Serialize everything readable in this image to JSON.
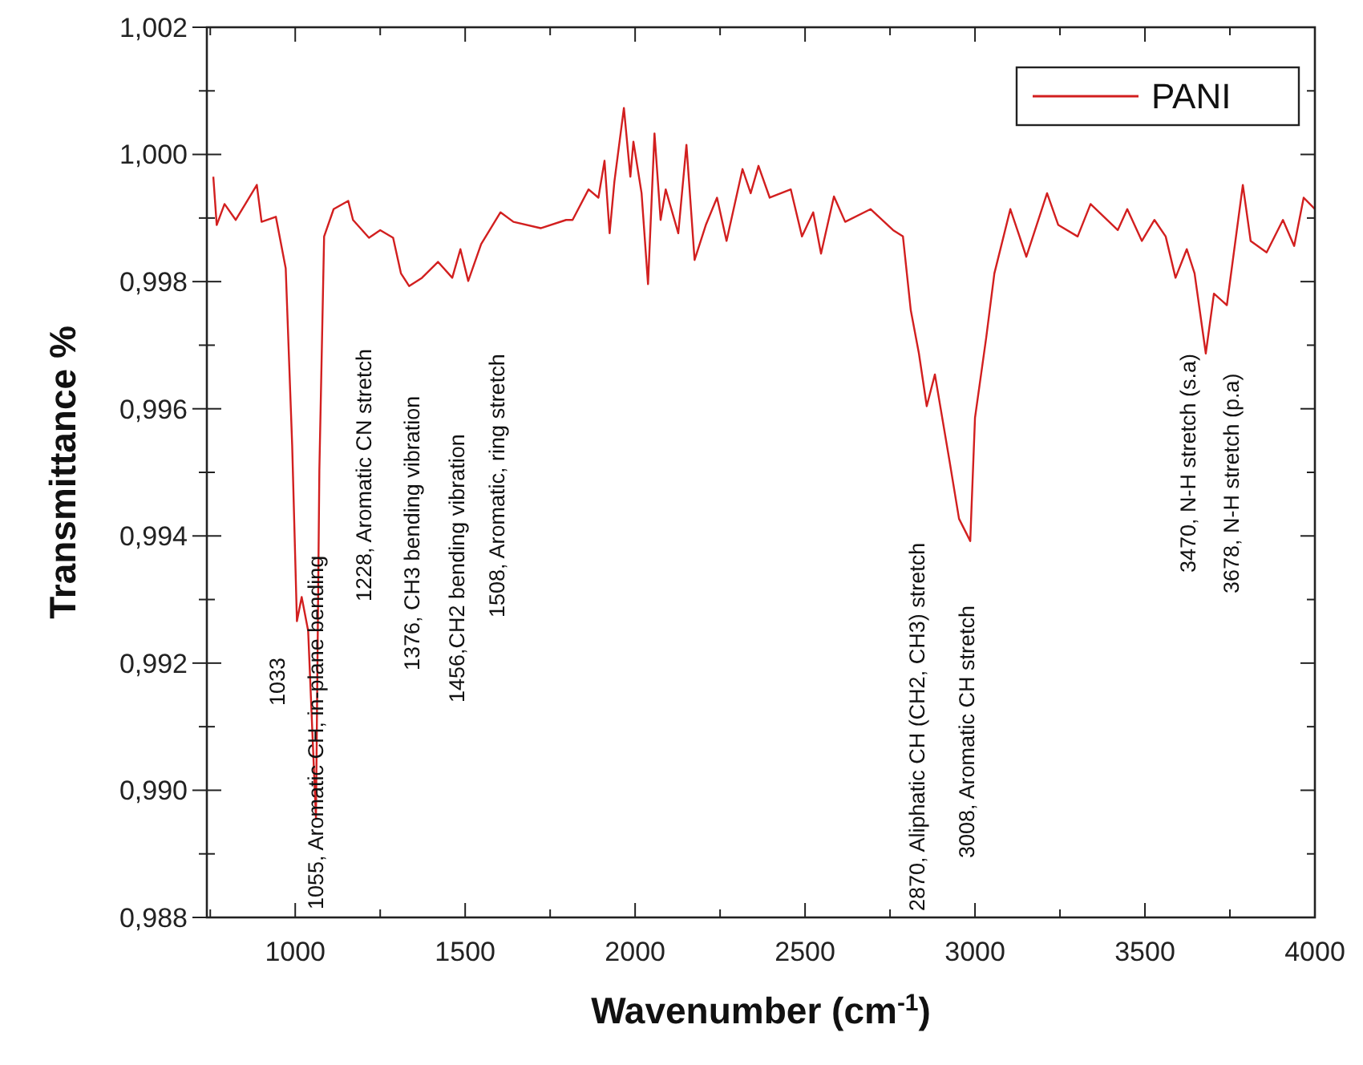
{
  "chart_data": {
    "type": "line",
    "xlabel": "Wavenumber (cm$^{-1}$)",
    "ylabel": "Transmittance %",
    "xlim": [
      740,
      4000
    ],
    "xticks": [
      {
        "value": 750,
        "label": null
      },
      1000,
      {
        "value": 1250,
        "label": null
      },
      1500,
      {
        "value": 1750,
        "label": null
      },
      2000,
      {
        "value": 2250,
        "label": null
      },
      2500,
      {
        "value": 2750,
        "label": null
      },
      3000,
      {
        "value": 3250,
        "label": null
      },
      3500,
      {
        "value": 3750,
        "label": null
      },
      4000
    ],
    "ylim": [
      0.988,
      1.002
    ],
    "yticks": [
      {
        "value": 0.988,
        "label": "0,988"
      },
      {
        "value": 0.989,
        "label": null
      },
      {
        "value": 0.99,
        "label": "0,990"
      },
      {
        "value": 0.991,
        "label": null
      },
      {
        "value": 0.992,
        "label": "0,992"
      },
      {
        "value": 0.993,
        "label": null
      },
      {
        "value": 0.994,
        "label": "0,994"
      },
      {
        "value": 0.995,
        "label": null
      },
      {
        "value": 0.996,
        "label": "0,996"
      },
      {
        "value": 0.997,
        "label": null
      },
      {
        "value": 0.998,
        "label": "0,998"
      },
      {
        "value": 0.999,
        "label": null
      },
      {
        "value": 1.0,
        "label": "1,000"
      },
      {
        "value": 1.001,
        "label": null
      },
      {
        "value": 1.002,
        "label": "1,002"
      }
    ],
    "grid": false,
    "legend": "top right",
    "marker": "none",
    "line_style": "solid",
    "series": [
      {
        "name": "PANI",
        "color": "#d21f1f",
        "x": [
          759,
          769,
          792,
          825,
          887,
          901,
          943,
          972,
          991,
          1005,
          1019,
          1038,
          1061,
          1071,
          1085,
          1113,
          1156,
          1170,
          1217,
          1250,
          1288,
          1311,
          1335,
          1373,
          1420,
          1462,
          1486,
          1509,
          1547,
          1604,
          1642,
          1722,
          1797,
          1816,
          1863,
          1892,
          1910,
          1925,
          1939,
          1967,
          1986,
          1995,
          2019,
          2038,
          2057,
          2075,
          2090,
          2127,
          2151,
          2175,
          2208,
          2241,
          2269,
          2316,
          2340,
          2363,
          2396,
          2458,
          2491,
          2524,
          2547,
          2585,
          2618,
          2693,
          2759,
          2788,
          2811,
          2835,
          2858,
          2882,
          2925,
          2953,
          2986,
          3000,
          3033,
          3057,
          3104,
          3151,
          3212,
          3245,
          3302,
          3340,
          3420,
          3448,
          3491,
          3528,
          3561,
          3590,
          3623,
          3646,
          3679,
          3703,
          3741,
          3788,
          3811,
          3858,
          3906,
          3939,
          3967,
          4000
        ],
        "values": [
          0.99965,
          0.99889,
          0.99922,
          0.99897,
          0.99952,
          0.99894,
          0.99902,
          0.99821,
          0.99543,
          0.99266,
          0.99304,
          0.99251,
          0.98956,
          0.99503,
          0.99871,
          0.99914,
          0.99927,
          0.99897,
          0.99869,
          0.99881,
          0.99869,
          0.99813,
          0.99793,
          0.99806,
          0.99831,
          0.99806,
          0.99851,
          0.99801,
          0.99859,
          0.99909,
          0.99894,
          0.99884,
          0.99897,
          0.99897,
          0.99945,
          0.99932,
          0.9999,
          0.99876,
          0.99957,
          1.00073,
          0.99965,
          1.0002,
          0.99939,
          0.99796,
          1.00033,
          0.99897,
          0.99945,
          0.99876,
          1.00015,
          0.99834,
          0.99889,
          0.99932,
          0.99864,
          0.99977,
          0.99939,
          0.99982,
          0.99932,
          0.99945,
          0.99871,
          0.99909,
          0.99844,
          0.99934,
          0.99894,
          0.99914,
          0.99881,
          0.99871,
          0.99755,
          0.99687,
          0.99604,
          0.99654,
          0.99518,
          0.99427,
          0.99392,
          0.99586,
          0.99712,
          0.99813,
          0.99914,
          0.99839,
          0.99939,
          0.99889,
          0.99871,
          0.99922,
          0.99881,
          0.99914,
          0.99864,
          0.99897,
          0.99871,
          0.99806,
          0.99851,
          0.99813,
          0.99687,
          0.99781,
          0.99763,
          0.99952,
          0.99864,
          0.99846,
          0.99897,
          0.99856,
          0.99932,
          0.99914
        ]
      }
    ],
    "annotations": [
      "1033",
      "1055, Aromatic CH, in-plane bending",
      "1228, Aromatic CN stretch",
      "1376, CH3 bending vibration",
      "1456,CH2 bending vibration",
      "1508, Aromatic, ring stretch",
      "2870, Aliphatic CH (CH2, CH3) stretch",
      "3008, Aromatic CH stretch",
      "3470, N-H stretch (s.a)",
      "3678, N-H stretch (p.a)"
    ]
  }
}
